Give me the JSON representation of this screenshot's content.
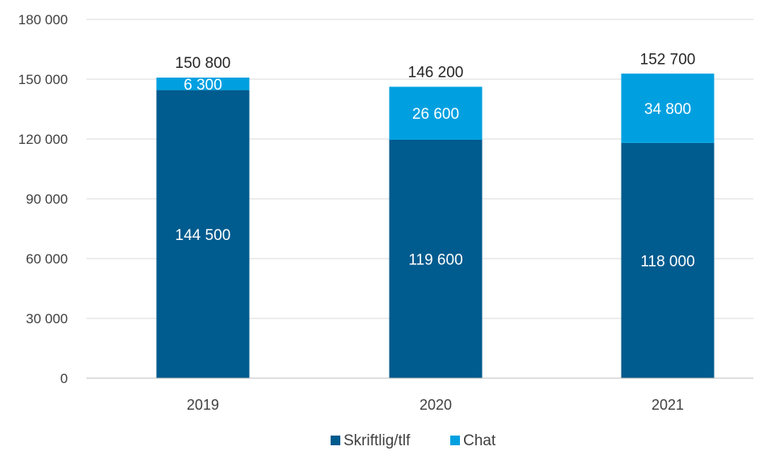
{
  "chart_data": {
    "type": "bar",
    "stacked": true,
    "categories": [
      "2019",
      "2020",
      "2021"
    ],
    "series": [
      {
        "name": "Skriftlig/tlf",
        "values": [
          144500,
          119600,
          118000
        ],
        "color": "#005b8e",
        "labels": [
          "144 500",
          "119 600",
          "118 000"
        ]
      },
      {
        "name": "Chat",
        "values": [
          6300,
          26600,
          34800
        ],
        "color": "#00a0e0",
        "labels": [
          "6 300",
          "26 600",
          "34 800"
        ]
      }
    ],
    "totals": [
      150800,
      146200,
      152700
    ],
    "total_labels": [
      "150 800",
      "146 200",
      "152 700"
    ],
    "ylim": [
      0,
      180000
    ],
    "yticks": [
      0,
      30000,
      60000,
      90000,
      120000,
      150000,
      180000
    ],
    "ytick_labels": [
      "0",
      "30 000",
      "60 000",
      "90 000",
      "120 000",
      "150 000",
      "180 000"
    ],
    "grid": true,
    "legend_position": "bottom"
  }
}
